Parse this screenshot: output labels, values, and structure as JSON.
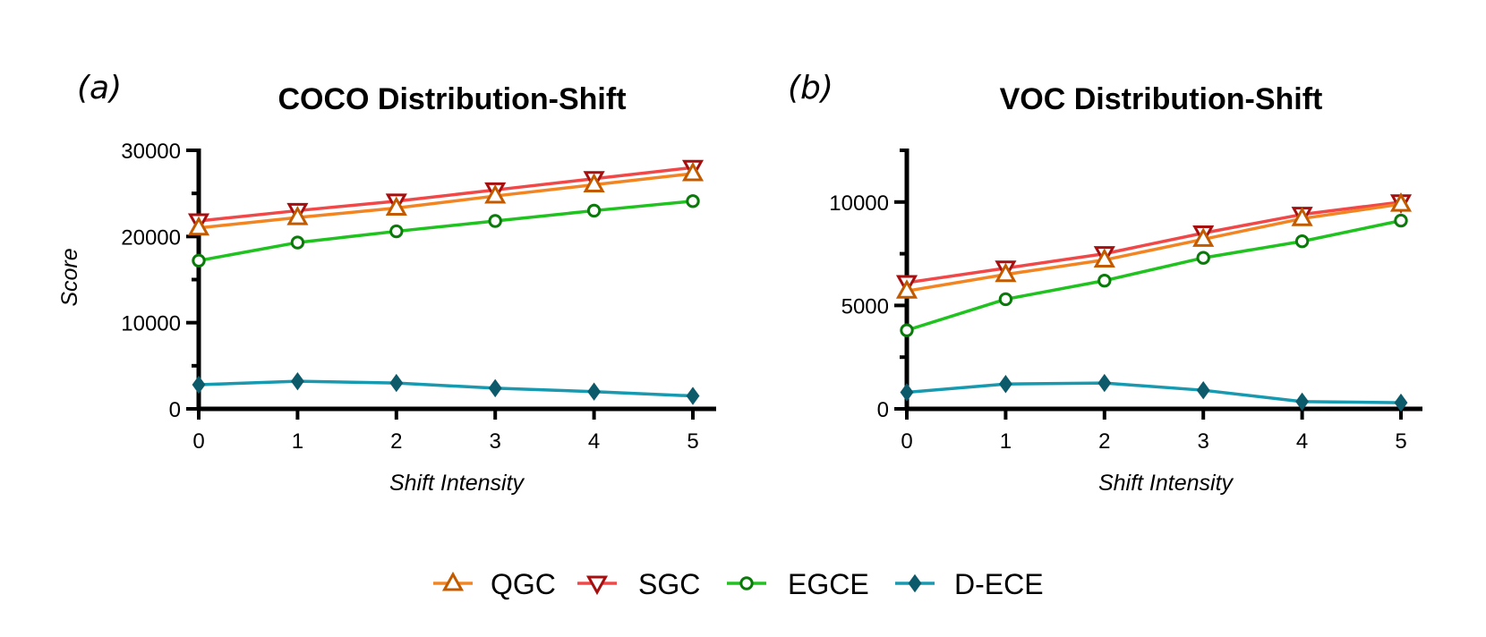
{
  "chart_data": [
    {
      "type": "line",
      "panel_label": "(a)",
      "title": "COCO Distribution-Shift",
      "xlabel": "Shift Intensity",
      "ylabel": "Score",
      "x": [
        0,
        1,
        2,
        3,
        4,
        5
      ],
      "xlim": [
        0,
        5
      ],
      "ylim": [
        0,
        30000
      ],
      "yticks": [
        0,
        10000,
        20000,
        30000
      ],
      "series": [
        {
          "name": "QGC",
          "values": [
            21000,
            22200,
            23300,
            24700,
            26000,
            27300
          ]
        },
        {
          "name": "SGC",
          "values": [
            21800,
            23000,
            24100,
            25400,
            26700,
            28000
          ]
        },
        {
          "name": "EGCE",
          "values": [
            17200,
            19300,
            20600,
            21800,
            23000,
            24100
          ]
        },
        {
          "name": "D-ECE",
          "values": [
            2800,
            3200,
            3000,
            2400,
            2000,
            1500
          ]
        }
      ]
    },
    {
      "type": "line",
      "panel_label": "(b)",
      "title": "VOC Distribution-Shift",
      "xlabel": "Shift Intensity",
      "ylabel": "",
      "x": [
        0,
        1,
        2,
        3,
        4,
        5
      ],
      "xlim": [
        0,
        5
      ],
      "ylim": [
        0,
        12500
      ],
      "yticks": [
        0,
        5000,
        10000
      ],
      "series": [
        {
          "name": "QGC",
          "values": [
            5700,
            6500,
            7200,
            8200,
            9200,
            9900
          ]
        },
        {
          "name": "SGC",
          "values": [
            6100,
            6800,
            7500,
            8500,
            9400,
            10000
          ]
        },
        {
          "name": "EGCE",
          "values": [
            3800,
            5300,
            6200,
            7300,
            8100,
            9100
          ]
        },
        {
          "name": "D-ECE",
          "values": [
            800,
            1200,
            1250,
            900,
            350,
            300
          ]
        }
      ]
    }
  ],
  "legend": [
    {
      "name": "QGC",
      "color": "#f28522",
      "marker_fill": "#c25a00",
      "marker": "triangle-up"
    },
    {
      "name": "SGC",
      "color": "#f04848",
      "marker_fill": "#a50f0f",
      "marker": "triangle-down"
    },
    {
      "name": "EGCE",
      "color": "#1fc21f",
      "marker_fill": "#0a7a0a",
      "marker": "circle"
    },
    {
      "name": "D-ECE",
      "color": "#1799b0",
      "marker_fill": "#0d5a6a",
      "marker": "diamond"
    }
  ]
}
